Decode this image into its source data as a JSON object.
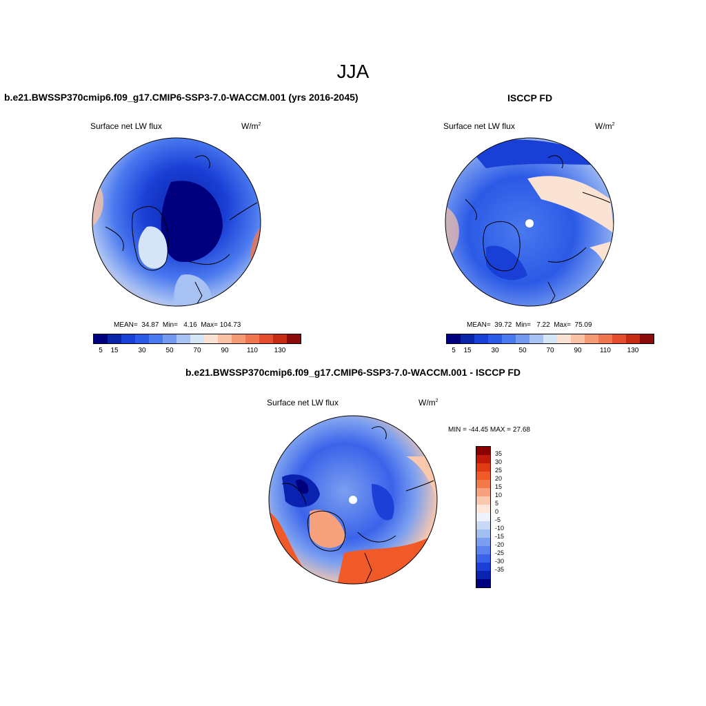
{
  "figure": {
    "title": "JJA",
    "panel_left_title": "b.e21.BWSSP370cmip6.f09_g17.CMIP6-SSP3-7.0-WACCM.001 (yrs 2016-2045)",
    "panel_right_title": "ISCCP FD",
    "panel_diff_title": "b.e21.BWSSP370cmip6.f09_g17.CMIP6-SSP3-7.0-WACCM.001 - ISCCP FD"
  },
  "panels": [
    {
      "variable": "Surface net LW flux",
      "units": "W/m",
      "units_sup": "2",
      "mean_label": "MEAN=",
      "mean": "34.87",
      "min_label": "Min=",
      "min": "4.16",
      "max_label": "Max=",
      "max": "104.73"
    },
    {
      "variable": "Surface net LW flux",
      "units": "W/m",
      "units_sup": "2",
      "mean_label": "MEAN=",
      "mean": "39.72",
      "min_label": "Min=",
      "min": "7.22",
      "max_label": "Max=",
      "max": "75.09"
    },
    {
      "variable": "Surface net LW flux",
      "units": "W/m",
      "units_sup": "2",
      "minmax_text": "MIN = -44.45 MAX =  27.68"
    }
  ],
  "colorbar_abs": {
    "colors": [
      "#00007f",
      "#0a24a8",
      "#1a3fd6",
      "#2b5ae6",
      "#4a79ef",
      "#7599f0",
      "#a8c1f3",
      "#d6e4f7",
      "#fbe3d4",
      "#f9c2a6",
      "#f49a77",
      "#ef7550",
      "#e34c2c",
      "#c42a14",
      "#8b0a0a"
    ],
    "labels": [
      "5",
      "15",
      "30",
      "50",
      "70",
      "90",
      "110",
      "130"
    ]
  },
  "colorbar_diff": {
    "colors": [
      "#8b0000",
      "#c01a0a",
      "#e03a14",
      "#f05a28",
      "#f4794a",
      "#f7a27c",
      "#fac9ad",
      "#fde6da",
      "#eef2fb",
      "#c9d8f5",
      "#a3bff1",
      "#7b9ff0",
      "#5b82ee",
      "#3a63ea",
      "#1c3fd8",
      "#0a22b0",
      "#00007f"
    ],
    "labels": [
      "35",
      "30",
      "25",
      "20",
      "15",
      "10",
      "5",
      "0",
      "-5",
      "-10",
      "-15",
      "-20",
      "-25",
      "-30",
      "-35"
    ]
  }
}
